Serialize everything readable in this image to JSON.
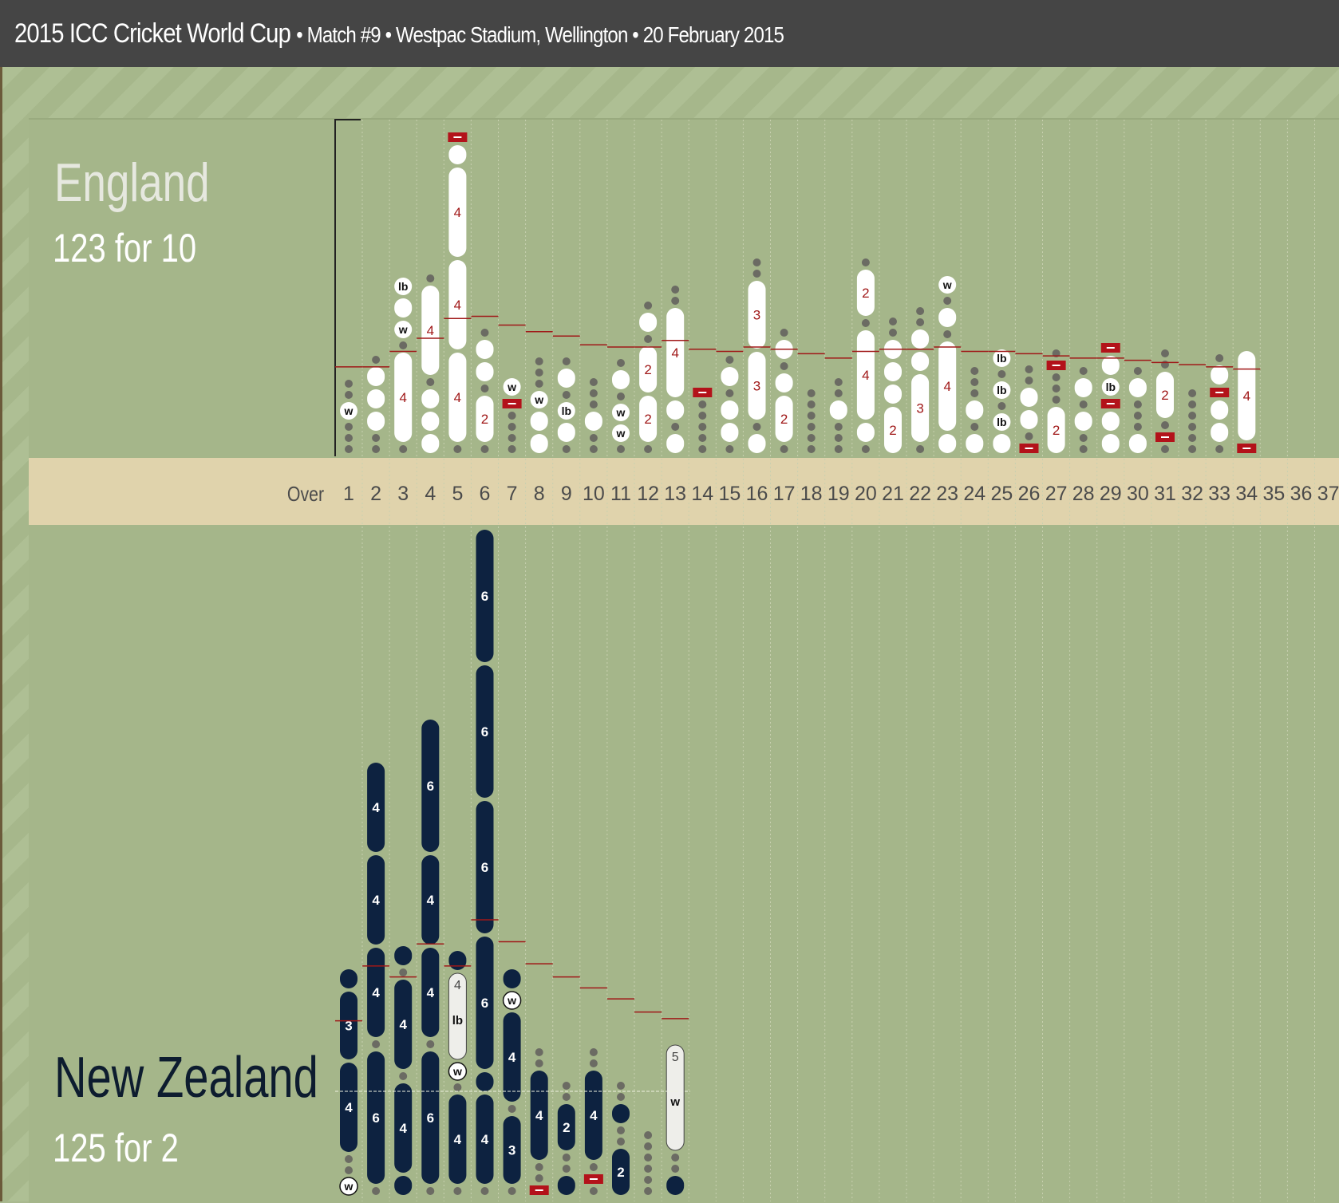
{
  "header": {
    "title": "2015 ICC Cricket World Cup",
    "subtitle": "• Match #9 • Westpac Stadium, Wellington • 20 February 2015"
  },
  "colors": {
    "england_ball": "#ffffff",
    "england_text": "#a01818",
    "nz_ball": "#0d2240",
    "nz_text": "#ffffff",
    "extra_marker": "#b3121a",
    "run_rate_line": "#a01818",
    "dot": "#6b6b63",
    "band": "#e0d3ac"
  },
  "axis": {
    "label": "Over",
    "ticks": [
      "1",
      "2",
      "3",
      "4",
      "5",
      "6",
      "7",
      "8",
      "9",
      "10",
      "11",
      "12",
      "13",
      "14",
      "15",
      "16",
      "17",
      "18",
      "19",
      "20",
      "21",
      "22",
      "23",
      "24",
      "25",
      "26",
      "27",
      "28",
      "29",
      "30",
      "31",
      "32",
      "33",
      "34",
      "35",
      "36",
      "37"
    ]
  },
  "chart_data": [
    {
      "type": "bar",
      "team": "England",
      "score": "123 for 10",
      "overs": [
        {
          "over": 1,
          "balls": [
            "·",
            "·",
            "·",
            "w",
            "·",
            "·"
          ]
        },
        {
          "over": 2,
          "balls": [
            "·",
            "·",
            "1",
            "1",
            "1",
            "·"
          ]
        },
        {
          "over": 3,
          "balls": [
            "·",
            "4",
            "·",
            "w",
            "1",
            "lb"
          ]
        },
        {
          "over": 4,
          "balls": [
            "1",
            "1",
            "1",
            "·",
            "4",
            "·"
          ]
        },
        {
          "over": 5,
          "balls": [
            "·",
            "4",
            "4",
            "4",
            "1",
            "nb"
          ]
        },
        {
          "over": 6,
          "balls": [
            "·",
            "2",
            "·",
            "1",
            "1",
            "·"
          ]
        },
        {
          "over": 7,
          "balls": [
            "·",
            "·",
            "·",
            "·",
            "nb",
            "w"
          ]
        },
        {
          "over": 8,
          "balls": [
            "1",
            "1",
            "w",
            "·",
            "·",
            "·"
          ]
        },
        {
          "over": 9,
          "balls": [
            "·",
            "1",
            "lb",
            "·",
            "1",
            "·"
          ]
        },
        {
          "over": 10,
          "balls": [
            "·",
            "·",
            "1",
            "·",
            "·",
            "·"
          ]
        },
        {
          "over": 11,
          "balls": [
            "·",
            "w",
            "w",
            "·",
            "1",
            "·"
          ]
        },
        {
          "over": 12,
          "balls": [
            "·",
            "2",
            "2",
            "·",
            "1",
            "·"
          ]
        },
        {
          "over": 13,
          "balls": [
            "1",
            "·",
            "1",
            "4",
            "·",
            "·"
          ]
        },
        {
          "over": 14,
          "balls": [
            "·",
            "·",
            "·",
            "·",
            "·",
            "nb"
          ]
        },
        {
          "over": 15,
          "balls": [
            "·",
            "1",
            "1",
            "·",
            "1",
            "·"
          ]
        },
        {
          "over": 16,
          "balls": [
            "1",
            "·",
            "3",
            "3",
            "·",
            "·"
          ]
        },
        {
          "over": 17,
          "balls": [
            "·",
            "2",
            "1",
            "·",
            "1",
            "·"
          ]
        },
        {
          "over": 18,
          "balls": [
            "·",
            "·",
            "·",
            "·",
            "·",
            "·"
          ]
        },
        {
          "over": 19,
          "balls": [
            "·",
            "·",
            "·",
            "1",
            "·",
            "·"
          ]
        },
        {
          "over": 20,
          "balls": [
            "·",
            "1",
            "4",
            "·",
            "2",
            "·"
          ]
        },
        {
          "over": 21,
          "balls": [
            "2",
            "1",
            "1",
            "1",
            "·",
            "·"
          ]
        },
        {
          "over": 22,
          "balls": [
            "·",
            "3",
            "1",
            "1",
            "·",
            "·"
          ]
        },
        {
          "over": 23,
          "balls": [
            "1",
            "4",
            "·",
            "1",
            "·",
            "w"
          ]
        },
        {
          "over": 24,
          "balls": [
            "1",
            "·",
            "1",
            "·",
            "·",
            "·"
          ]
        },
        {
          "over": 25,
          "balls": [
            "1",
            "lb",
            "·",
            "lb",
            "·",
            "lb"
          ]
        },
        {
          "over": 26,
          "balls": [
            "nb",
            "·",
            "1",
            "1",
            "·",
            "·"
          ]
        },
        {
          "over": 27,
          "balls": [
            "2",
            "·",
            "·",
            "·",
            "nb",
            "·"
          ]
        },
        {
          "over": 28,
          "balls": [
            "·",
            "·",
            "1",
            "·",
            "1",
            "·"
          ]
        },
        {
          "over": 29,
          "balls": [
            "1",
            "1",
            "nb",
            "lb",
            "1",
            "nb"
          ]
        },
        {
          "over": 30,
          "balls": [
            "1",
            "·",
            "·",
            "·",
            "1",
            "·"
          ]
        },
        {
          "over": 31,
          "balls": [
            "·",
            "nb",
            "·",
            "2",
            "·",
            "·"
          ]
        },
        {
          "over": 32,
          "balls": [
            "·",
            "·",
            "·",
            "·",
            "·",
            "·"
          ]
        },
        {
          "over": 33,
          "balls": [
            "·",
            "1",
            "1",
            "nb",
            "1",
            "·"
          ]
        },
        {
          "over": 34,
          "balls": [
            "nb",
            "4"
          ]
        }
      ],
      "run_rate": [
        4,
        4,
        4.7,
        5.3,
        6.2,
        6.3,
        5.9,
        5.6,
        5.4,
        5.0,
        4.9,
        4.9,
        5.2,
        4.8,
        4.7,
        4.9,
        4.8,
        4.6,
        4.4,
        4.7,
        4.8,
        4.8,
        4.9,
        4.7,
        4.7,
        4.6,
        4.5,
        4.4,
        4.4,
        4.3,
        4.2,
        4.1,
        4.0,
        3.9
      ]
    },
    {
      "type": "bar",
      "team": "New Zealand",
      "score": "125 for 2",
      "overs": [
        {
          "over": 1,
          "balls": [
            "w",
            "·",
            "·",
            "4",
            "3",
            "1"
          ]
        },
        {
          "over": 2,
          "balls": [
            "·",
            "6",
            "·",
            "4",
            "4",
            "4"
          ]
        },
        {
          "over": 3,
          "balls": [
            "1",
            "4",
            "·",
            "4",
            "·",
            "1"
          ]
        },
        {
          "over": 4,
          "balls": [
            "·",
            "6",
            "·",
            "4",
            "4",
            "6"
          ]
        },
        {
          "over": 5,
          "balls": [
            "·",
            "4",
            "·",
            "w",
            "4lb",
            "1"
          ]
        },
        {
          "over": 6,
          "balls": [
            "·",
            "4",
            "1",
            "6",
            "6",
            "6",
            "6"
          ]
        },
        {
          "over": 7,
          "balls": [
            "·",
            "3",
            "·",
            "4",
            "w",
            "1"
          ]
        },
        {
          "over": 8,
          "balls": [
            "nb",
            "·",
            "·",
            "4",
            "·",
            "·"
          ]
        },
        {
          "over": 9,
          "balls": [
            "1",
            "·",
            "·",
            "2",
            "·",
            "·"
          ]
        },
        {
          "over": 10,
          "balls": [
            "·",
            "nb",
            "·",
            "4",
            "·",
            "·"
          ]
        },
        {
          "over": 11,
          "balls": [
            "2",
            "·",
            "·",
            "1",
            "·",
            "·"
          ]
        },
        {
          "over": 12,
          "balls": [
            "·",
            "·",
            "·",
            "·",
            "·",
            "·"
          ]
        },
        {
          "over": 13,
          "balls": [
            "1",
            "·",
            "·",
            "5w"
          ]
        }
      ],
      "run_rate": [
        8,
        10.5,
        10,
        11.5,
        10.5,
        12.6,
        11.6,
        10.6,
        10.0,
        9.5,
        9.0,
        8.4,
        8.1
      ]
    }
  ]
}
